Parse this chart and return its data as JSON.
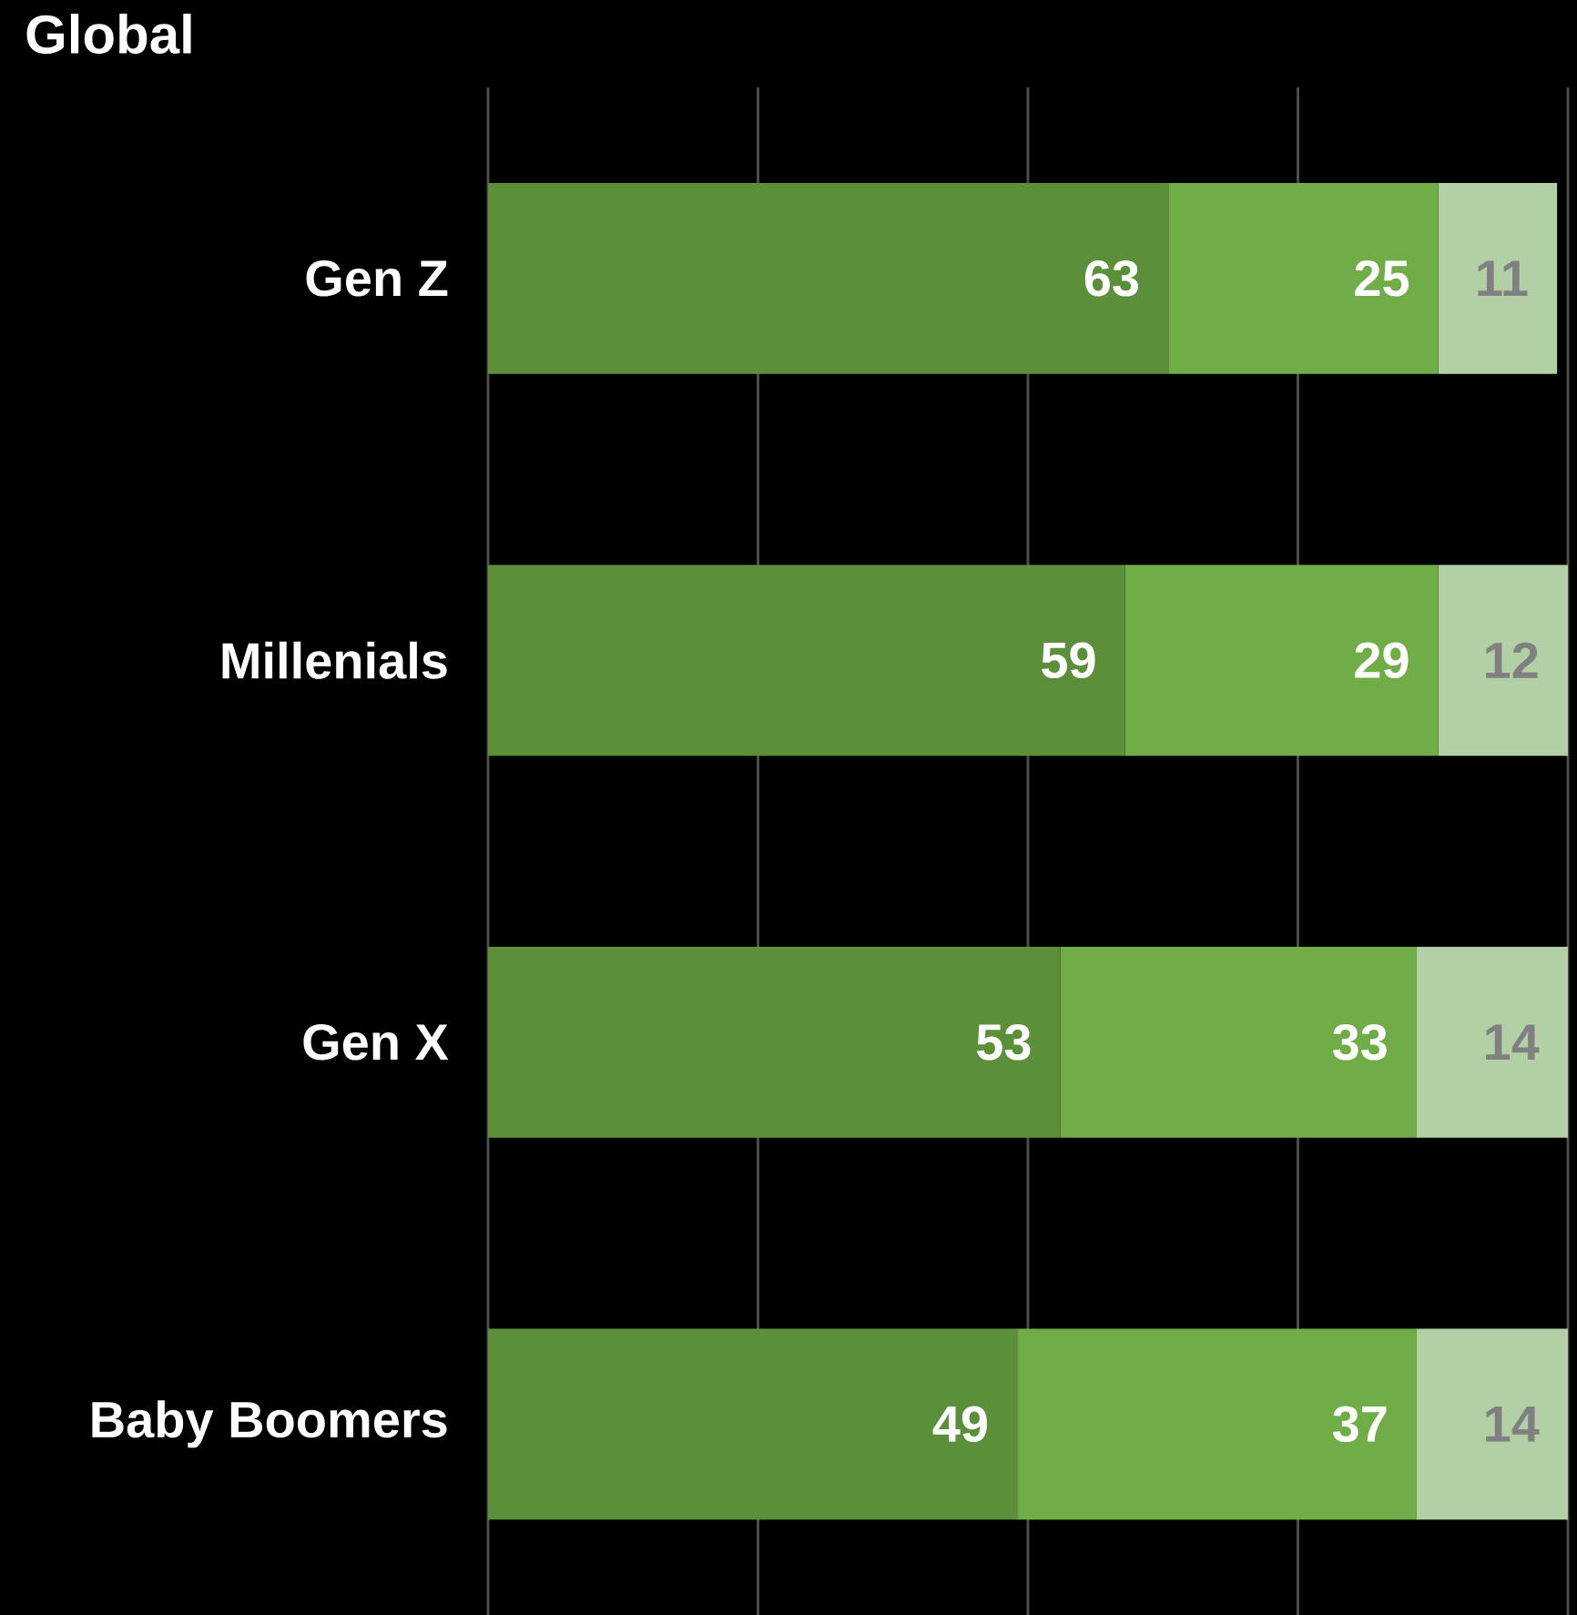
{
  "chart_data": {
    "type": "bar",
    "orientation": "horizontal",
    "stacked": true,
    "title": "Global",
    "categories": [
      "Gen Z",
      "Millenials",
      "Gen X",
      "Baby Boomers"
    ],
    "series": [
      {
        "color": "#5b8f3a",
        "values": [
          63,
          59,
          53,
          49
        ]
      },
      {
        "color": "#70ad47",
        "values": [
          25,
          29,
          33,
          37
        ]
      },
      {
        "color": "#b3cfa6",
        "values": [
          11,
          12,
          14,
          14
        ]
      }
    ],
    "xlim": [
      0,
      100
    ],
    "xticks": [
      {
        "value": 0,
        "label": null
      },
      {
        "value": 25,
        "label": null
      },
      {
        "value": 50,
        "label": null
      },
      {
        "value": 75,
        "label": null
      },
      {
        "value": 100,
        "label": null
      }
    ],
    "grid": "x",
    "tick_labels": "y",
    "data_labels": true
  }
}
